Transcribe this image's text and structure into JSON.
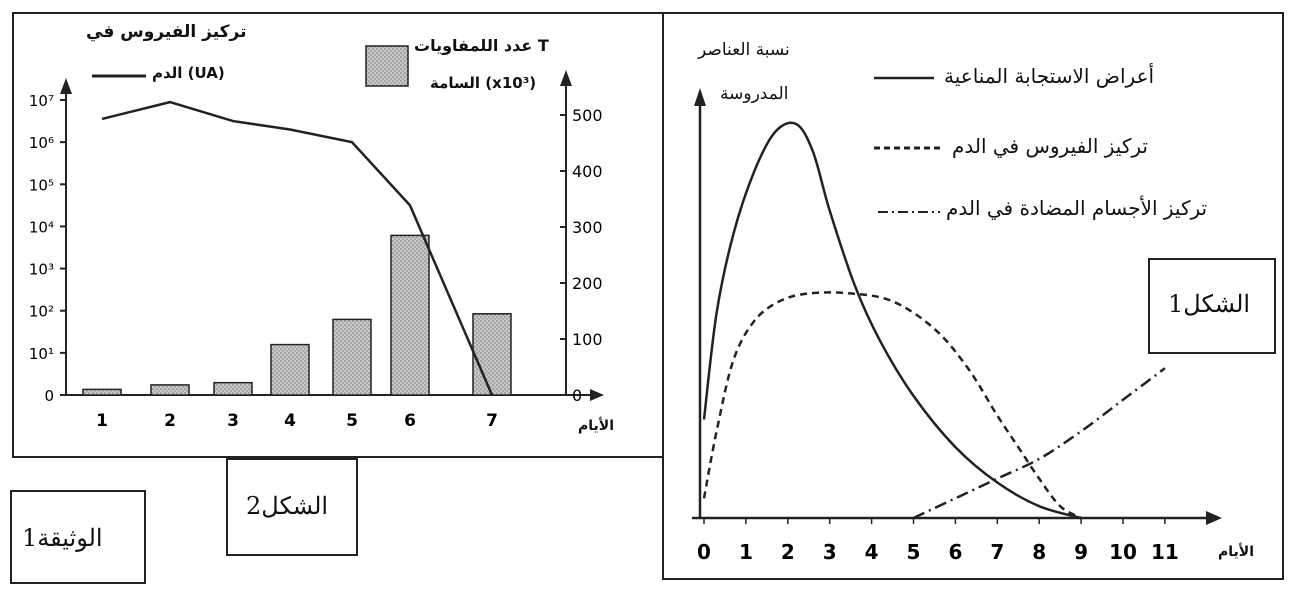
{
  "document_label": "الوثيقة1",
  "figure2_label": "الشكل2",
  "figure1_label": "الشكل1",
  "figure1_axis_x_label": "الأيام",
  "figure1_axis_y_label_line1": "نسبة العناصر",
  "figure1_axis_y_label_line2": "المدروسة",
  "figure2_axis_x_label": "الأيام",
  "figure2_left_axis_label_line1": "تركيز الفيروس في",
  "figure2_left_axis_label_line2": "الدم (UA)",
  "figure2_right_axis_label_line1": "عدد اللمفاويات T",
  "figure2_right_axis_label_line2": "السامة (x10³)",
  "legend_immune": "أعراض الاستجابة المناعية",
  "legend_virus": "تركيز الفيروس في الدم",
  "legend_antibody": "تركيز الأجسام المضادة في الدم",
  "chart_data": [
    {
      "id": "figure2",
      "type": "bar+line",
      "x": [
        1,
        2,
        3,
        4,
        5,
        6,
        7
      ],
      "xlabel": "الأيام",
      "series": [
        {
          "name": "عدد اللمفاويات T السامة (x10³)",
          "kind": "bar",
          "axis": "right",
          "values": [
            10,
            18,
            22,
            90,
            135,
            285,
            145
          ]
        },
        {
          "name": "تركيز الفيروس في الدم (UA)",
          "kind": "line",
          "axis": "left",
          "log10_values": [
            6.55,
            6.95,
            6.5,
            6.3,
            6.0,
            4.5,
            0
          ]
        }
      ],
      "left_axis": {
        "scale": "log",
        "ticks": [
          "0",
          "10¹",
          "10²",
          "10³",
          "10⁴",
          "10⁵",
          "10⁶",
          "10⁷"
        ],
        "range_log10": [
          0,
          7
        ]
      },
      "right_axis": {
        "scale": "linear",
        "ticks": [
          0,
          100,
          200,
          300,
          400,
          500
        ],
        "range": [
          0,
          500
        ]
      }
    },
    {
      "id": "figure1",
      "type": "line",
      "x_ticks": [
        0,
        1,
        2,
        3,
        4,
        5,
        6,
        7,
        8,
        9,
        10,
        11
      ],
      "xlabel": "الأيام",
      "xlim": [
        0,
        11
      ],
      "ylim": [
        0,
        1
      ],
      "series": [
        {
          "name": "أعراض الاستجابة المناعية",
          "style": "solid",
          "x": [
            0,
            0.3,
            0.7,
            1.2,
            1.7,
            2.2,
            2.6,
            3.0,
            3.6,
            4.2,
            5.0,
            6.0,
            7.0,
            8.0,
            9.0
          ],
          "y": [
            0.25,
            0.52,
            0.72,
            0.88,
            0.98,
            1.0,
            0.93,
            0.78,
            0.59,
            0.45,
            0.31,
            0.18,
            0.09,
            0.03,
            0.0
          ]
        },
        {
          "name": "تركيز الفيروس في الدم",
          "style": "dashed",
          "x": [
            0,
            0.3,
            0.7,
            1.2,
            1.8,
            2.5,
            3.5,
            4.5,
            5.5,
            6.3,
            7.0,
            7.5,
            8.0,
            8.5,
            9.0
          ],
          "y": [
            0.05,
            0.22,
            0.4,
            0.5,
            0.55,
            0.57,
            0.57,
            0.55,
            0.48,
            0.38,
            0.26,
            0.18,
            0.1,
            0.03,
            0.0
          ]
        },
        {
          "name": "تركيز الأجسام المضادة في الدم",
          "style": "dash-dot",
          "x": [
            5.0,
            6.0,
            7.0,
            8.0,
            9.0,
            10.0,
            11.0
          ],
          "y": [
            0.0,
            0.05,
            0.1,
            0.15,
            0.22,
            0.3,
            0.38
          ]
        }
      ]
    }
  ]
}
